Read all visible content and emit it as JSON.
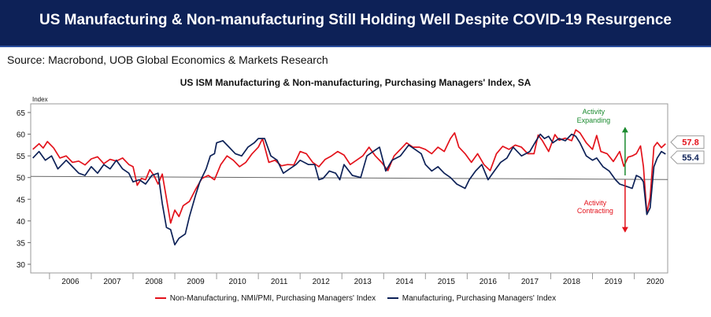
{
  "header": {
    "title": "US Manufacturing & Non-manufacturing Still Holding Well Despite COVID-19 Resurgence",
    "source": "Source: Macrobond, UOB Global Economics & Markets Research"
  },
  "colors": {
    "banner": "#0d2157",
    "non_manufacturing": "#e3121b",
    "manufacturing": "#0d2157",
    "expanding": "#1a8a2e",
    "contracting": "#e3121b",
    "threshold": "#666666"
  },
  "chart_data": {
    "type": "line",
    "title": "US ISM Manufacturing & Non-manufacturing, Purchasing Managers' Index, SA",
    "ylabel": "Index",
    "xlabel": "",
    "ylim": [
      28,
      67
    ],
    "yticks": [
      30,
      35,
      40,
      45,
      50,
      55,
      60,
      65
    ],
    "xlim": [
      2005.55,
      2020.8
    ],
    "xticks": [
      "2006",
      "2007",
      "2008",
      "2009",
      "2010",
      "2011",
      "2012",
      "2013",
      "2014",
      "2015",
      "2016",
      "2017",
      "2018",
      "2019",
      "2020"
    ],
    "grid": false,
    "legend_position": "bottom",
    "threshold": 50,
    "series": [
      {
        "name": "Non-Manufacturing, NMI/PMI, Purchasing Managers' Index",
        "color": "#e3121b",
        "end_label": "57.8",
        "points": [
          [
            2005.6,
            56.5
          ],
          [
            2005.75,
            57.8
          ],
          [
            2005.85,
            56.8
          ],
          [
            2005.95,
            58.3
          ],
          [
            2006.1,
            56.8
          ],
          [
            2006.25,
            54.5
          ],
          [
            2006.4,
            55.0
          ],
          [
            2006.55,
            53.5
          ],
          [
            2006.7,
            53.8
          ],
          [
            2006.85,
            52.9
          ],
          [
            2007.0,
            54.3
          ],
          [
            2007.15,
            54.8
          ],
          [
            2007.3,
            53.2
          ],
          [
            2007.45,
            54.2
          ],
          [
            2007.6,
            53.8
          ],
          [
            2007.75,
            54.5
          ],
          [
            2007.9,
            53.0
          ],
          [
            2008.0,
            52.5
          ],
          [
            2008.1,
            48.2
          ],
          [
            2008.2,
            49.8
          ],
          [
            2008.3,
            49.5
          ],
          [
            2008.4,
            51.8
          ],
          [
            2008.5,
            50.5
          ],
          [
            2008.6,
            48.5
          ],
          [
            2008.7,
            50.8
          ],
          [
            2008.8,
            45.2
          ],
          [
            2008.9,
            39.5
          ],
          [
            2009.0,
            42.5
          ],
          [
            2009.1,
            41.0
          ],
          [
            2009.2,
            43.5
          ],
          [
            2009.35,
            44.5
          ],
          [
            2009.5,
            47.3
          ],
          [
            2009.65,
            49.8
          ],
          [
            2009.8,
            50.5
          ],
          [
            2009.95,
            49.5
          ],
          [
            2010.1,
            53.0
          ],
          [
            2010.25,
            55.0
          ],
          [
            2010.4,
            54.0
          ],
          [
            2010.55,
            52.5
          ],
          [
            2010.7,
            53.5
          ],
          [
            2010.85,
            55.5
          ],
          [
            2011.0,
            57.0
          ],
          [
            2011.1,
            59.0
          ],
          [
            2011.25,
            53.5
          ],
          [
            2011.4,
            54.0
          ],
          [
            2011.55,
            52.7
          ],
          [
            2011.7,
            53.0
          ],
          [
            2011.85,
            52.9
          ],
          [
            2012.0,
            56.0
          ],
          [
            2012.15,
            55.5
          ],
          [
            2012.3,
            53.5
          ],
          [
            2012.45,
            52.5
          ],
          [
            2012.6,
            54.2
          ],
          [
            2012.75,
            55.0
          ],
          [
            2012.9,
            56.0
          ],
          [
            2013.05,
            55.2
          ],
          [
            2013.2,
            53.0
          ],
          [
            2013.35,
            54.0
          ],
          [
            2013.5,
            55.0
          ],
          [
            2013.65,
            57.0
          ],
          [
            2013.8,
            55.0
          ],
          [
            2013.95,
            53.5
          ],
          [
            2014.1,
            51.6
          ],
          [
            2014.25,
            55.0
          ],
          [
            2014.4,
            56.5
          ],
          [
            2014.55,
            58.0
          ],
          [
            2014.7,
            57.0
          ],
          [
            2014.85,
            57.0
          ],
          [
            2015.0,
            56.5
          ],
          [
            2015.15,
            55.5
          ],
          [
            2015.3,
            57.0
          ],
          [
            2015.45,
            56.0
          ],
          [
            2015.6,
            59.0
          ],
          [
            2015.7,
            60.3
          ],
          [
            2015.8,
            57.0
          ],
          [
            2015.95,
            55.5
          ],
          [
            2016.1,
            53.5
          ],
          [
            2016.25,
            55.5
          ],
          [
            2016.4,
            53.0
          ],
          [
            2016.55,
            51.6
          ],
          [
            2016.7,
            55.5
          ],
          [
            2016.85,
            57.2
          ],
          [
            2017.0,
            56.5
          ],
          [
            2017.15,
            57.5
          ],
          [
            2017.3,
            57.0
          ],
          [
            2017.45,
            55.5
          ],
          [
            2017.6,
            55.5
          ],
          [
            2017.7,
            59.8
          ],
          [
            2017.8,
            58.5
          ],
          [
            2017.95,
            56.0
          ],
          [
            2018.1,
            59.9
          ],
          [
            2018.2,
            58.6
          ],
          [
            2018.35,
            59.1
          ],
          [
            2018.5,
            58.5
          ],
          [
            2018.6,
            61.0
          ],
          [
            2018.7,
            60.3
          ],
          [
            2018.85,
            58.0
          ],
          [
            2019.0,
            56.5
          ],
          [
            2019.1,
            59.7
          ],
          [
            2019.2,
            56.0
          ],
          [
            2019.35,
            55.5
          ],
          [
            2019.5,
            53.7
          ],
          [
            2019.65,
            56.0
          ],
          [
            2019.75,
            52.6
          ],
          [
            2019.85,
            54.7
          ],
          [
            2019.95,
            55.0
          ],
          [
            2020.05,
            55.5
          ],
          [
            2020.15,
            57.3
          ],
          [
            2020.22,
            52.5
          ],
          [
            2020.3,
            41.8
          ],
          [
            2020.38,
            45.4
          ],
          [
            2020.47,
            57.1
          ],
          [
            2020.55,
            58.1
          ],
          [
            2020.65,
            56.9
          ],
          [
            2020.75,
            57.8
          ]
        ]
      },
      {
        "name": "Manufacturing, Purchasing Managers' Index",
        "color": "#0d2157",
        "end_label": "55.4",
        "points": [
          [
            2005.6,
            54.5
          ],
          [
            2005.75,
            56.0
          ],
          [
            2005.9,
            54.0
          ],
          [
            2006.05,
            55.0
          ],
          [
            2006.2,
            52.0
          ],
          [
            2006.4,
            54.0
          ],
          [
            2006.55,
            52.5
          ],
          [
            2006.7,
            51.0
          ],
          [
            2006.85,
            50.5
          ],
          [
            2007.0,
            52.5
          ],
          [
            2007.15,
            51.0
          ],
          [
            2007.3,
            53.0
          ],
          [
            2007.45,
            52.0
          ],
          [
            2007.6,
            54.0
          ],
          [
            2007.75,
            52.0
          ],
          [
            2007.9,
            51.0
          ],
          [
            2008.0,
            49.0
          ],
          [
            2008.15,
            49.5
          ],
          [
            2008.3,
            48.5
          ],
          [
            2008.45,
            50.5
          ],
          [
            2008.6,
            51.0
          ],
          [
            2008.7,
            44.0
          ],
          [
            2008.8,
            38.5
          ],
          [
            2008.9,
            38.0
          ],
          [
            2009.0,
            34.5
          ],
          [
            2009.1,
            36.0
          ],
          [
            2009.25,
            37.0
          ],
          [
            2009.35,
            41.0
          ],
          [
            2009.5,
            46.0
          ],
          [
            2009.6,
            49.0
          ],
          [
            2009.75,
            52.0
          ],
          [
            2009.85,
            55.0
          ],
          [
            2009.95,
            55.5
          ],
          [
            2010.0,
            58.0
          ],
          [
            2010.15,
            58.5
          ],
          [
            2010.3,
            57.0
          ],
          [
            2010.45,
            55.5
          ],
          [
            2010.6,
            55.0
          ],
          [
            2010.75,
            57.0
          ],
          [
            2010.9,
            58.0
          ],
          [
            2011.0,
            59.0
          ],
          [
            2011.15,
            59.0
          ],
          [
            2011.3,
            55.0
          ],
          [
            2011.45,
            54.0
          ],
          [
            2011.6,
            51.0
          ],
          [
            2011.75,
            52.0
          ],
          [
            2011.9,
            53.0
          ],
          [
            2012.0,
            54.0
          ],
          [
            2012.2,
            53.0
          ],
          [
            2012.35,
            53.0
          ],
          [
            2012.45,
            49.5
          ],
          [
            2012.55,
            49.8
          ],
          [
            2012.7,
            51.5
          ],
          [
            2012.85,
            51.0
          ],
          [
            2012.95,
            49.5
          ],
          [
            2013.05,
            53.0
          ],
          [
            2013.25,
            50.5
          ],
          [
            2013.45,
            50.0
          ],
          [
            2013.6,
            55.0
          ],
          [
            2013.75,
            56.0
          ],
          [
            2013.9,
            57.0
          ],
          [
            2014.05,
            51.5
          ],
          [
            2014.2,
            54.0
          ],
          [
            2014.4,
            55.0
          ],
          [
            2014.6,
            57.5
          ],
          [
            2014.75,
            56.5
          ],
          [
            2014.9,
            55.5
          ],
          [
            2015.0,
            53.0
          ],
          [
            2015.15,
            51.5
          ],
          [
            2015.3,
            52.5
          ],
          [
            2015.45,
            51.0
          ],
          [
            2015.6,
            50.0
          ],
          [
            2015.75,
            48.5
          ],
          [
            2015.85,
            48.0
          ],
          [
            2015.95,
            47.5
          ],
          [
            2016.05,
            49.5
          ],
          [
            2016.2,
            51.5
          ],
          [
            2016.35,
            53.0
          ],
          [
            2016.5,
            49.5
          ],
          [
            2016.65,
            51.5
          ],
          [
            2016.8,
            53.5
          ],
          [
            2016.95,
            54.5
          ],
          [
            2017.1,
            57.0
          ],
          [
            2017.3,
            55.0
          ],
          [
            2017.5,
            56.0
          ],
          [
            2017.65,
            58.5
          ],
          [
            2017.75,
            60.0
          ],
          [
            2017.85,
            59.0
          ],
          [
            2017.95,
            59.5
          ],
          [
            2018.05,
            58.0
          ],
          [
            2018.2,
            59.0
          ],
          [
            2018.35,
            58.5
          ],
          [
            2018.5,
            60.0
          ],
          [
            2018.6,
            59.5
          ],
          [
            2018.7,
            58.0
          ],
          [
            2018.85,
            55.0
          ],
          [
            2019.0,
            54.0
          ],
          [
            2019.1,
            54.5
          ],
          [
            2019.25,
            52.5
          ],
          [
            2019.4,
            51.5
          ],
          [
            2019.55,
            49.5
          ],
          [
            2019.65,
            48.5
          ],
          [
            2019.8,
            48.0
          ],
          [
            2019.95,
            47.5
          ],
          [
            2020.05,
            50.5
          ],
          [
            2020.15,
            50.0
          ],
          [
            2020.22,
            49.0
          ],
          [
            2020.3,
            41.5
          ],
          [
            2020.38,
            43.0
          ],
          [
            2020.47,
            52.5
          ],
          [
            2020.55,
            54.5
          ],
          [
            2020.65,
            56.0
          ],
          [
            2020.75,
            55.4
          ]
        ]
      }
    ],
    "annotations": [
      {
        "text": [
          "Activity",
          "Expanding"
        ],
        "color": "#1a8a2e",
        "arrow": "up"
      },
      {
        "text": [
          "Activity",
          "Contracting"
        ],
        "color": "#e3121b",
        "arrow": "down"
      }
    ]
  }
}
